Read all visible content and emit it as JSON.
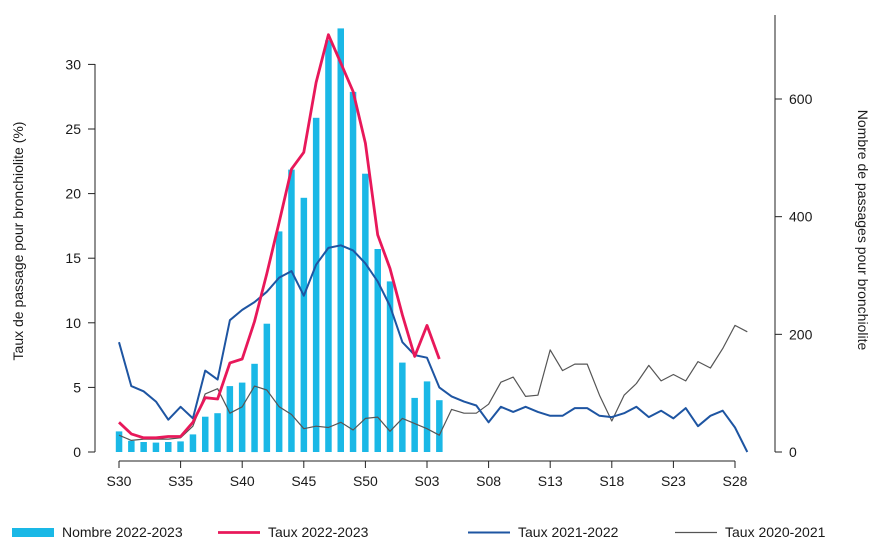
{
  "chart_data": {
    "type": "bar+line",
    "title": "",
    "xlabel": "",
    "ylabel_left": "Taux de passage pour bronchiolite (%)",
    "ylabel_right": "Nombre de passages pour bronchiolite",
    "ylim_left": [
      0,
      33
    ],
    "ylim_right": [
      0,
      720
    ],
    "yticks_left": [
      0,
      5,
      10,
      15,
      20,
      25,
      30
    ],
    "yticks_right": [
      0,
      200,
      400,
      600
    ],
    "x_labels": [
      "S30",
      "S35",
      "S40",
      "S45",
      "S50",
      "S03",
      "S08",
      "S13",
      "S18",
      "S23",
      "S28"
    ],
    "x_label_positions": [
      0,
      5,
      10,
      15,
      20,
      25,
      30,
      35,
      40,
      45,
      50
    ],
    "grid": false,
    "legend_position": "bottom",
    "bars": {
      "name": "Nombre 2022-2023",
      "color": "#1ab8e6",
      "x": [
        0,
        1,
        2,
        3,
        4,
        5,
        6,
        7,
        8,
        9,
        10,
        11,
        12,
        13,
        14,
        15,
        16,
        17,
        18,
        19,
        20,
        21,
        22,
        23,
        24,
        25,
        26
      ],
      "values": [
        35,
        19,
        17,
        16,
        17,
        18,
        30,
        60,
        66,
        112,
        118,
        150,
        218,
        375,
        480,
        432,
        568,
        700,
        720,
        612,
        473,
        345,
        290,
        152,
        92,
        120,
        88
      ]
    },
    "series": [
      {
        "name": "Taux 2022-2023",
        "axis": "left",
        "color": "#e8185a",
        "width": 2.8,
        "x": [
          0,
          1,
          2,
          3,
          4,
          5,
          6,
          7,
          8,
          9,
          10,
          11,
          12,
          13,
          14,
          15,
          16,
          17,
          18,
          19,
          20,
          21,
          22,
          23,
          24,
          25,
          26
        ],
        "values": [
          2.3,
          1.4,
          1.1,
          1.1,
          1.2,
          1.2,
          2.3,
          4.2,
          4.1,
          6.9,
          7.2,
          10.1,
          13.8,
          17.8,
          21.9,
          23.2,
          28.6,
          32.3,
          30.1,
          27.9,
          23.9,
          16.8,
          14.2,
          10.6,
          7.4,
          9.8,
          7.2
        ]
      },
      {
        "name": "Taux 2021-2022",
        "axis": "left",
        "color": "#1e55a2",
        "width": 2,
        "x": [
          0,
          1,
          2,
          3,
          4,
          5,
          6,
          7,
          8,
          9,
          10,
          11,
          12,
          13,
          14,
          15,
          16,
          17,
          18,
          19,
          20,
          21,
          22,
          23,
          24,
          25,
          26,
          27,
          28,
          29,
          30,
          31,
          32,
          33,
          34,
          35,
          36,
          37,
          38,
          39,
          40,
          41,
          42,
          43,
          44,
          45,
          46,
          47,
          48,
          49,
          50,
          51
        ],
        "values": [
          8.5,
          5.1,
          4.7,
          3.9,
          2.5,
          3.5,
          2.6,
          6.3,
          5.6,
          10.2,
          11.0,
          11.6,
          12.4,
          13.5,
          14.0,
          12.1,
          14.5,
          15.8,
          16.0,
          15.6,
          14.6,
          13.2,
          11.3,
          8.5,
          7.5,
          7.3,
          5.0,
          4.3,
          3.9,
          3.6,
          2.3,
          3.5,
          3.1,
          3.5,
          3.1,
          2.8,
          2.8,
          3.4,
          3.4,
          2.8,
          2.7,
          3.0,
          3.5,
          2.7,
          3.2,
          2.6,
          3.4,
          2.0,
          2.8,
          3.2,
          1.9,
          0
        ]
      },
      {
        "name": "Taux 2020-2021",
        "axis": "left",
        "color": "#555555",
        "width": 1.2,
        "x": [
          0,
          1,
          2,
          3,
          4,
          5,
          6,
          7,
          8,
          9,
          10,
          11,
          12,
          13,
          14,
          15,
          16,
          17,
          18,
          19,
          20,
          21,
          22,
          23,
          24,
          25,
          26,
          27,
          28,
          29,
          30,
          31,
          32,
          33,
          34,
          35,
          36,
          37,
          38,
          39,
          40,
          41,
          42,
          43,
          44,
          45,
          46,
          47,
          48,
          49,
          50,
          51
        ],
        "values": [
          1.3,
          0.9,
          1.0,
          1.0,
          1.0,
          1.1,
          2.0,
          4.5,
          4.9,
          3.0,
          3.5,
          5.1,
          4.8,
          3.5,
          2.9,
          1.8,
          2.0,
          1.9,
          2.3,
          1.7,
          2.6,
          2.7,
          1.6,
          2.6,
          2.2,
          1.8,
          1.3,
          3.3,
          3.0,
          3.0,
          3.7,
          5.4,
          5.8,
          4.3,
          4.4,
          7.9,
          6.3,
          6.8,
          6.8,
          4.4,
          2.4,
          4.4,
          5.3,
          6.7,
          5.5,
          6.0,
          5.5,
          7.0,
          6.5,
          8.0,
          9.8,
          9.3
        ]
      }
    ],
    "legend": [
      {
        "label": "Nombre 2022-2023",
        "kind": "bar",
        "color": "#1ab8e6"
      },
      {
        "label": "Taux 2022-2023",
        "kind": "line",
        "color": "#e8185a"
      },
      {
        "label": "Taux 2021-2022",
        "kind": "line",
        "color": "#1e55a2"
      },
      {
        "label": "Taux 2020-2021",
        "kind": "line",
        "color": "#555555"
      }
    ]
  }
}
